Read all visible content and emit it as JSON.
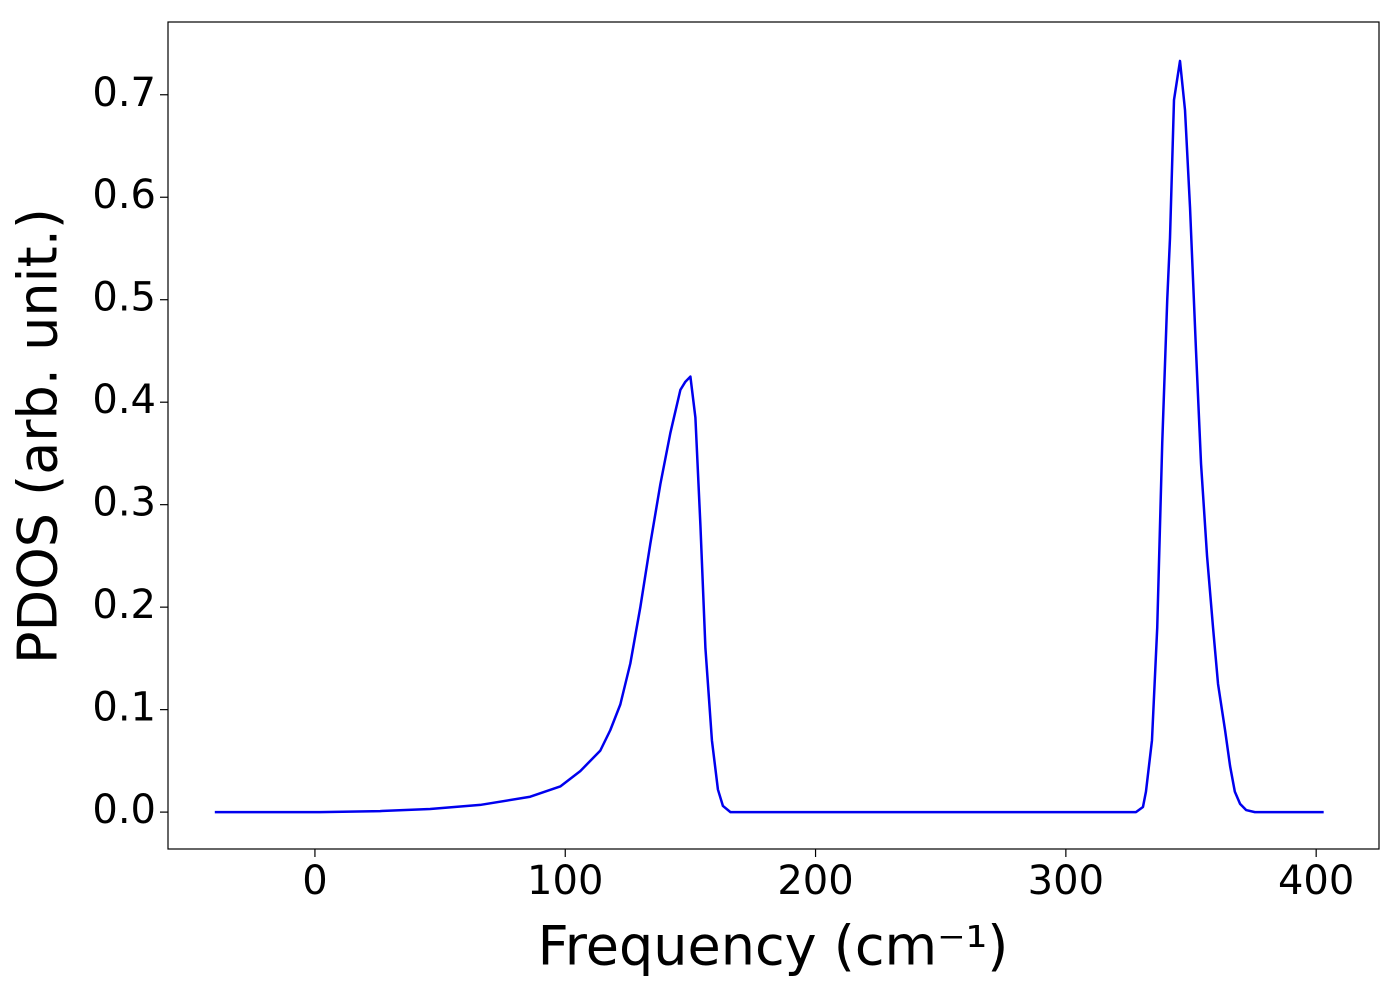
{
  "chart_data": {
    "type": "line",
    "xlabel": "Frequency (cm⁻¹)",
    "ylabel": "PDOS (arb. unit.)",
    "xlim": [
      -58.7,
      425.1
    ],
    "ylim": [
      -0.036,
      0.771
    ],
    "xticks": [
      0,
      100,
      200,
      300,
      400
    ],
    "yticks": [
      {
        "value": 0,
        "label": "0.0"
      },
      0.1,
      0.2,
      0.3,
      0.4,
      0.5,
      0.6,
      0.7
    ],
    "grid": false,
    "series": [
      {
        "name": "PDOS",
        "color": "#0000ee",
        "x": [
          -40,
          2,
          26,
          46,
          66,
          86,
          98,
          106,
          114,
          118,
          122,
          126,
          130,
          134,
          138,
          142,
          146,
          148,
          150,
          152,
          154,
          156,
          158.6,
          161,
          163,
          166,
          200,
          300,
          328,
          330.8,
          332,
          334.4,
          336.5,
          338.5,
          340.5,
          341.6,
          343.2,
          345.6,
          347.6,
          349.6,
          352,
          354,
          356.4,
          358.8,
          360.8,
          363.6,
          365.6,
          367.5,
          369.6,
          372,
          375.5,
          403
        ],
        "values": [
          0,
          0,
          0.001,
          0.003,
          0.007,
          0.015,
          0.025,
          0.04,
          0.06,
          0.08,
          0.105,
          0.145,
          0.2,
          0.262,
          0.32,
          0.37,
          0.412,
          0.42,
          0.425,
          0.385,
          0.28,
          0.16,
          0.07,
          0.022,
          0.006,
          0,
          0,
          0,
          0,
          0.005,
          0.02,
          0.07,
          0.18,
          0.36,
          0.5,
          0.56,
          0.695,
          0.733,
          0.685,
          0.59,
          0.45,
          0.34,
          0.25,
          0.18,
          0.125,
          0.08,
          0.045,
          0.02,
          0.008,
          0.002,
          0,
          0
        ]
      }
    ]
  }
}
